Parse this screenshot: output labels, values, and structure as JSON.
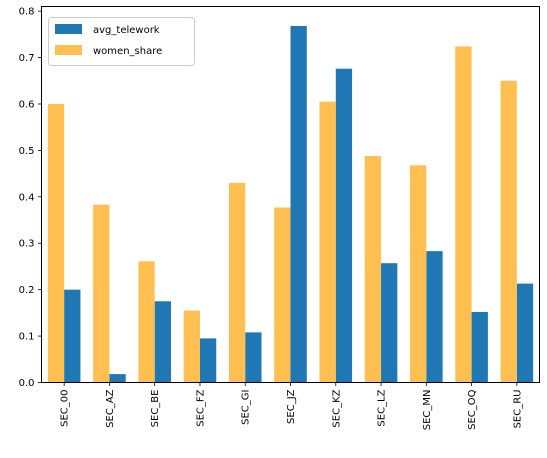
{
  "chart_data": {
    "type": "bar",
    "categories": [
      "SEC_00",
      "SEC_AZ",
      "SEC_BE",
      "SEC_FZ",
      "SEC_GI",
      "SEC_JZ",
      "SEC_KZ",
      "SEC_LZ",
      "SEC_MN",
      "SEC_OQ",
      "SEC_RU"
    ],
    "series": [
      {
        "name": "avg_telework",
        "color": "#1f77b4",
        "values": [
          0.2,
          0.018,
          0.175,
          0.095,
          0.108,
          0.768,
          0.676,
          0.257,
          0.283,
          0.152,
          0.213
        ]
      },
      {
        "name": "women_share",
        "color": "#ffb432",
        "alpha": 0.85,
        "values": [
          0.6,
          0.383,
          0.261,
          0.155,
          0.43,
          0.377,
          0.605,
          0.488,
          0.468,
          0.724,
          0.65
        ]
      }
    ],
    "ylim": [
      0,
      0.81
    ],
    "yticks": [
      "0.0",
      "0.1",
      "0.2",
      "0.3",
      "0.4",
      "0.5",
      "0.6",
      "0.7",
      "0.8"
    ],
    "grid": false,
    "legend_position": "top-left",
    "title": "",
    "xlabel": "",
    "ylabel": ""
  }
}
